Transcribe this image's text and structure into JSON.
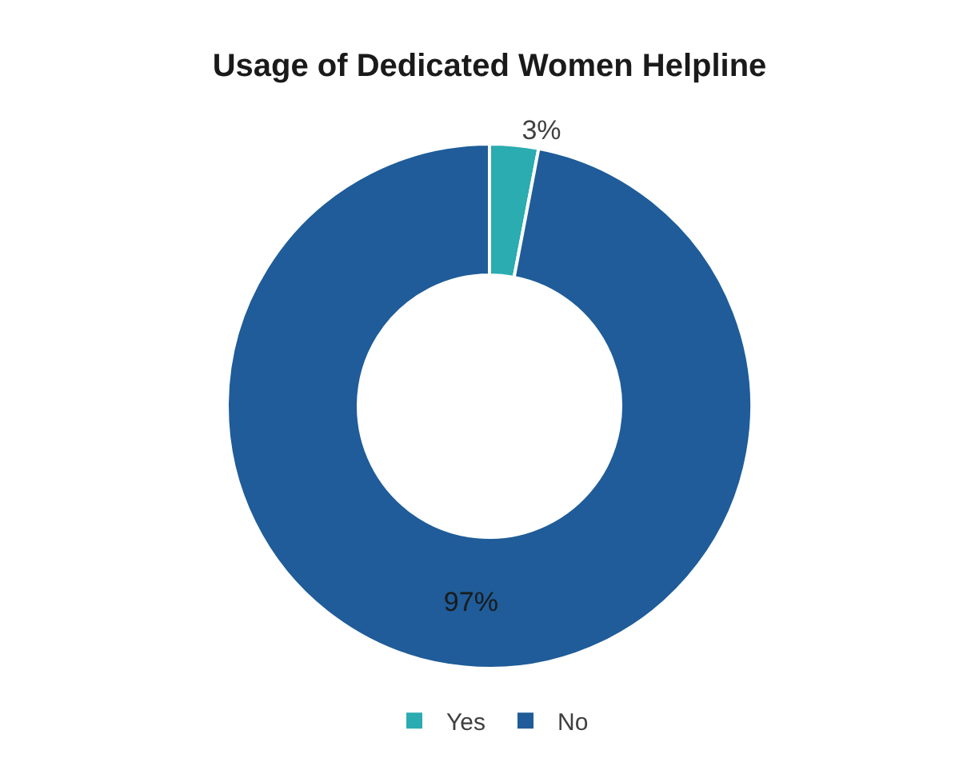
{
  "chart_data": {
    "type": "donut",
    "title": "Usage of Dedicated Women Helpline",
    "categories": [
      "Yes",
      "No"
    ],
    "values": [
      3,
      97
    ],
    "colors": [
      "#2aacb0",
      "#1f5c99"
    ],
    "value_labels": [
      "3%",
      "97%"
    ],
    "legend": "bottom"
  }
}
